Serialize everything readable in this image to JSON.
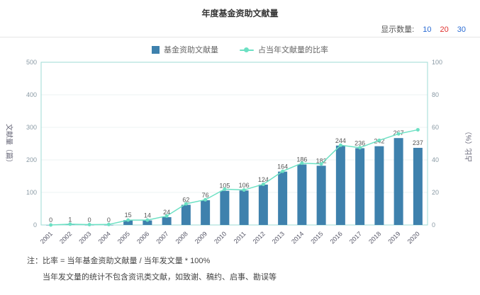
{
  "title": "年度基金资助文献量",
  "display_control": {
    "label": "显示数量:",
    "options": [
      {
        "value": "10",
        "color": "#2b6cd4"
      },
      {
        "value": "20",
        "color": "#e0312e"
      },
      {
        "value": "30",
        "color": "#2b6cd4"
      }
    ]
  },
  "legend": [
    {
      "label": "基金资助文献量",
      "type": "bar",
      "color": "#3e81ad"
    },
    {
      "label": "占当年文献量的比率",
      "type": "line",
      "color": "#6ce0c3"
    }
  ],
  "notes": {
    "line1": "注：比率 = 当年基金资助文献量 / 当年发文量 * 100%",
    "line2": "当年发文量的统计不包含资讯类文献，如致谢、稿约、启事、勘误等"
  },
  "chart_data": {
    "type": "bar+line",
    "title": "年度基金资助文献量",
    "categories": [
      "2001",
      "2002",
      "2003",
      "2004",
      "2005",
      "2006",
      "2007",
      "2008",
      "2009",
      "2010",
      "2011",
      "2012",
      "2013",
      "2014",
      "2015",
      "2016",
      "2017",
      "2018",
      "2019",
      "2020"
    ],
    "series": [
      {
        "name": "基金资助文献量",
        "type": "bar",
        "axis": "left",
        "color": "#3e81ad",
        "values": [
          0,
          1,
          0,
          0,
          15,
          14,
          24,
          62,
          76,
          105,
          106,
          124,
          164,
          186,
          182,
          244,
          236,
          242,
          267,
          237
        ]
      },
      {
        "name": "占当年文献量的比率",
        "type": "line",
        "axis": "right",
        "color": "#6ce0c3",
        "values": [
          0,
          0.5,
          0.2,
          0.3,
          3,
          3,
          5.5,
          13,
          15.5,
          22,
          21.5,
          25,
          33,
          38,
          37.5,
          49,
          47.5,
          52,
          56,
          58.5
        ]
      }
    ],
    "left_axis": {
      "title": "文献量（篇）",
      "min": 0,
      "max": 500,
      "step": 100
    },
    "right_axis": {
      "title": "占比（%）",
      "min": 0,
      "max": 100,
      "step": 20
    },
    "grid": true,
    "legend_position": "top"
  }
}
